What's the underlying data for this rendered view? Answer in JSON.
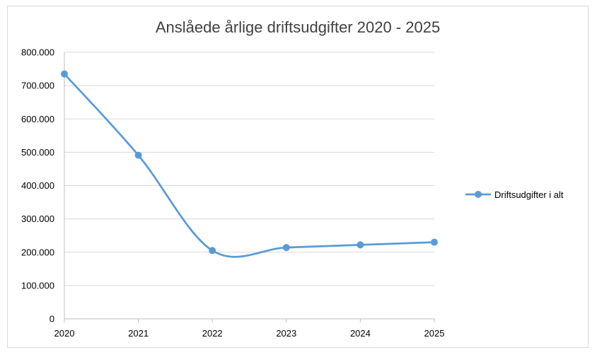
{
  "chart_data": {
    "type": "line",
    "title": "Anslåede årlige driftsudgifter 2020 - 2025",
    "xlabel": "",
    "ylabel": "",
    "categories": [
      "2020",
      "2021",
      "2022",
      "2023",
      "2024",
      "2025"
    ],
    "series": [
      {
        "name": "Driftsudgifter i alt",
        "values": [
          735000,
          491000,
          205000,
          214000,
          222000,
          230000
        ],
        "color": "#5b9bd5",
        "smooth": true,
        "markers": true
      }
    ],
    "ylim": [
      0,
      800000
    ],
    "yticks": [
      0,
      100000,
      200000,
      300000,
      400000,
      500000,
      600000,
      700000,
      800000
    ],
    "ytick_labels": [
      "0",
      "100.000",
      "200.000",
      "300.000",
      "400.000",
      "500.000",
      "600.000",
      "700.000",
      "800.000"
    ],
    "grid": true,
    "legend_position": "right",
    "colors": {
      "gridline": "#d9d9d9",
      "axis": "#bfbfbf",
      "border": "#d9d9d9",
      "title": "#404040"
    }
  }
}
